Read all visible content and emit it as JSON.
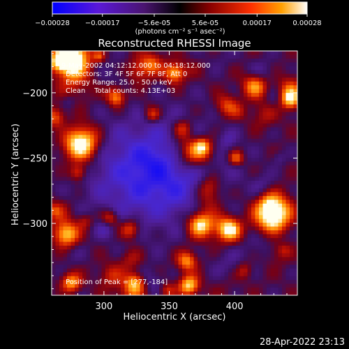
{
  "chart_data": {
    "type": "heatmap",
    "title": "Reconstructed RHESSI Image",
    "xlabel": "Heliocentric X (arcsec)",
    "ylabel": "Heliocentric Y (arcsec)",
    "xlim": [
      260,
      448
    ],
    "ylim": [
      -355,
      -168
    ],
    "x_ticks": [
      300,
      350,
      400
    ],
    "y_ticks": [
      -200,
      -250,
      -300
    ],
    "colorbar": {
      "range": [
        -0.00028,
        0.00028
      ],
      "tick_labels": [
        "-0.00028",
        "-0.00017",
        "-5.6e-05",
        "5.6e-05",
        "0.00017",
        "0.00028"
      ],
      "tick_values": [
        -0.00028,
        -0.00017,
        -5.6e-05,
        5.6e-05,
        0.00017,
        0.00028
      ],
      "unit_label": "(photons cm⁻² s⁻¹ asec⁻²)",
      "colors": [
        "#0000ff",
        "#6a1cc8",
        "#3a1058",
        "#000000",
        "#8a0000",
        "#ff3000",
        "#ffa000",
        "#ffffff"
      ]
    },
    "annotations": {
      "time": "9-May-2002 04:12:12.000 to 04:18:12.000",
      "detectors": "Detectors: 3F 4F 5F 6F 7F 8F, Att 0",
      "energy": "Energy Range: 25.0 - 50.0 keV",
      "clean": "Clean    Total counts: 4.13E+03",
      "peak": "Position of Peak = [277,-184]"
    },
    "peak_position": [
      277,
      -184
    ]
  },
  "footer": {
    "timestamp": "28-Apr-2022 23:13"
  }
}
